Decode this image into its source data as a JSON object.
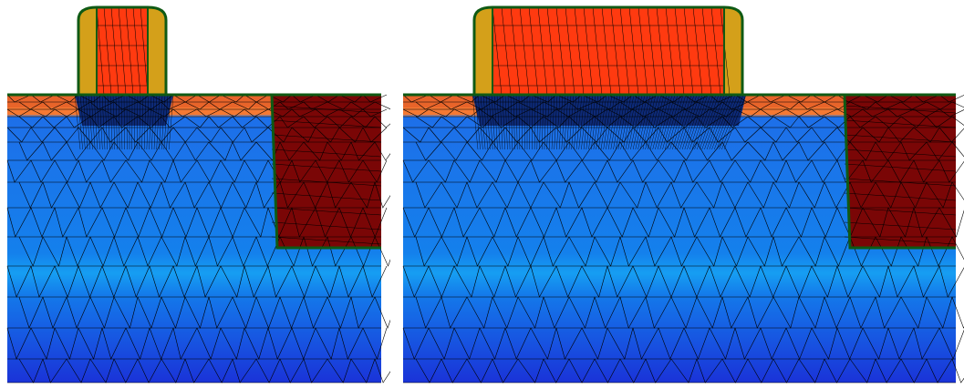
{
  "figure": {
    "panels": [
      {
        "id": "short-gate",
        "structure": [
          "gate-electrode",
          "gate-spacer-left",
          "gate-spacer-right",
          "gate-oxide",
          "channel-doping",
          "source-drain-extension",
          "shallow-trench-isolation",
          "substrate"
        ]
      },
      {
        "id": "long-gate",
        "structure": [
          "gate-electrode",
          "gate-spacer-left",
          "gate-spacer-right",
          "gate-oxide",
          "channel-doping",
          "source-drain-extension",
          "shallow-trench-isolation",
          "substrate"
        ]
      }
    ]
  },
  "colors": {
    "gate": "#ff3a10",
    "spacer": "#d4a01a",
    "outline": "#0f5a14",
    "sti": "#7a0606",
    "surface": "#e8642a",
    "mesh": "#000000",
    "substrate_top": "#1f6ce8",
    "substrate_band": "#169ef2",
    "substrate_bottom": "#1a33d8"
  }
}
